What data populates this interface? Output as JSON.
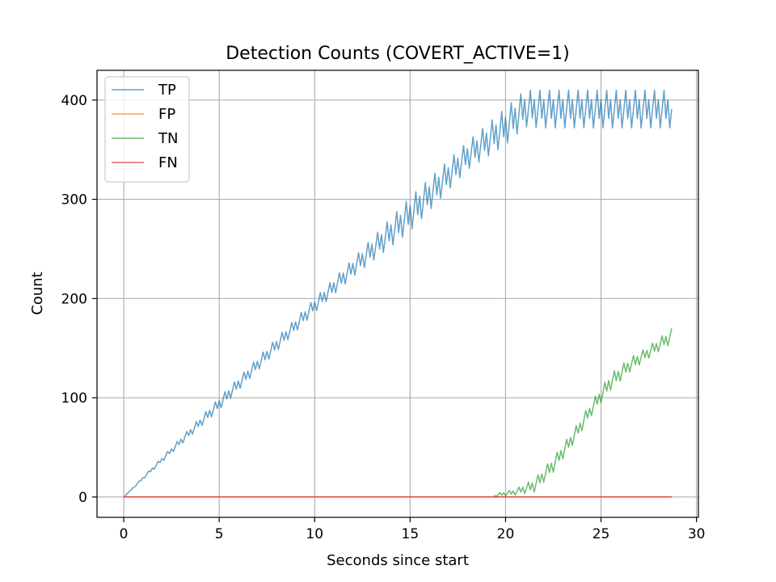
{
  "chart_data": {
    "type": "line",
    "title": "Detection Counts (COVERT_ACTIVE=1)",
    "xlabel": "Seconds since start",
    "ylabel": "Count",
    "xlim": [
      -1.4,
      30.1
    ],
    "ylim": [
      -20.5,
      430
    ],
    "x_ticks": [
      0,
      5,
      10,
      15,
      20,
      25,
      30
    ],
    "y_ticks": [
      0,
      100,
      200,
      300,
      400
    ],
    "grid": true,
    "legend_position": "top-left",
    "series": [
      {
        "name": "TP",
        "color": "#1f77b4",
        "points": [
          [
            0,
            0
          ],
          [
            0.5,
            10
          ],
          [
            1,
            20
          ],
          [
            1.5,
            28
          ],
          [
            2,
            38
          ],
          [
            3,
            55
          ],
          [
            4,
            72
          ],
          [
            5,
            94
          ],
          [
            6,
            113
          ],
          [
            7,
            131
          ],
          [
            8,
            150
          ],
          [
            9,
            168
          ],
          [
            10,
            193
          ],
          [
            11,
            210
          ],
          [
            12,
            230
          ],
          [
            13,
            248
          ],
          [
            14,
            263
          ],
          [
            15,
            280
          ],
          [
            16,
            300
          ],
          [
            17,
            320
          ],
          [
            18,
            338
          ],
          [
            19,
            357
          ],
          [
            20,
            372
          ],
          [
            21,
            392
          ],
          [
            22,
            404
          ],
          [
            23,
            405
          ],
          [
            24,
            404
          ],
          [
            25,
            405
          ],
          [
            26,
            404
          ],
          [
            27,
            405
          ],
          [
            28,
            404
          ],
          [
            28.7,
            400
          ]
        ],
        "band": [
          [
            0,
            0,
            0
          ],
          [
            5,
            88,
            100
          ],
          [
            10,
            186,
            200
          ],
          [
            12,
            222,
            240
          ],
          [
            15,
            268,
            302
          ],
          [
            18,
            330,
            358
          ],
          [
            20,
            355,
            392
          ],
          [
            21,
            373,
            410
          ],
          [
            22,
            372,
            410
          ],
          [
            28.7,
            372,
            410
          ]
        ]
      },
      {
        "name": "FP",
        "color": "#ff7f0e",
        "points": [
          [
            0,
            0
          ],
          [
            28.7,
            0
          ]
        ]
      },
      {
        "name": "TN",
        "color": "#2ca02c",
        "points": [
          [
            19.4,
            0
          ],
          [
            20,
            2
          ],
          [
            21,
            10
          ],
          [
            22,
            20
          ],
          [
            23,
            45
          ],
          [
            24,
            72
          ],
          [
            25,
            100
          ],
          [
            26,
            125
          ],
          [
            27,
            140
          ],
          [
            28,
            155
          ],
          [
            28.7,
            168
          ]
        ],
        "band": [
          [
            19.4,
            0,
            3
          ],
          [
            20.5,
            2,
            8
          ],
          [
            21.5,
            5,
            18
          ],
          [
            22.5,
            25,
            40
          ],
          [
            23.5,
            52,
            66
          ],
          [
            24.5,
            82,
            96
          ],
          [
            25.5,
            108,
            124
          ],
          [
            26.5,
            126,
            140
          ],
          [
            27.5,
            140,
            152
          ],
          [
            28.7,
            155,
            170
          ]
        ]
      },
      {
        "name": "FN",
        "color": "#d62728",
        "points": [
          [
            0,
            0
          ],
          [
            28.7,
            0
          ]
        ]
      }
    ]
  }
}
